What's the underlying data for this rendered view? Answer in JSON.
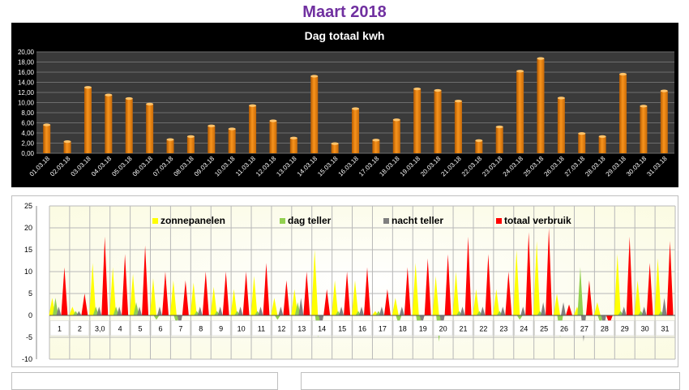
{
  "page": {
    "title": "Maart 2018"
  },
  "chart_data": [
    {
      "type": "bar",
      "title": "Dag totaal kwh",
      "categories": [
        "01.03.18",
        "02.03.18",
        "03.03.18",
        "04.03.18",
        "05.03.18",
        "06.03.18",
        "07.03.18",
        "08.03.18",
        "09.03.18",
        "10.03.18",
        "11.03.18",
        "12.03.18",
        "13.03.18",
        "14.03.18",
        "15.03.18",
        "16.03.18",
        "17.03.18",
        "18.03.18",
        "19.03.18",
        "20.03.18",
        "21.03.18",
        "22.03.18",
        "23.03.18",
        "24.03.18",
        "25.03.18",
        "26.03.18",
        "27.03.18",
        "28.03.18",
        "29.03.18",
        "30.03.18",
        "31.03.18"
      ],
      "values": [
        5.6,
        2.3,
        13.0,
        11.5,
        10.8,
        9.7,
        2.7,
        3.3,
        5.4,
        4.8,
        9.4,
        6.4,
        3.0,
        15.2,
        1.9,
        8.8,
        2.6,
        6.6,
        12.7,
        12.4,
        10.3,
        2.5,
        5.2,
        16.2,
        18.7,
        10.9,
        3.9,
        3.3,
        15.6,
        9.3,
        12.3
      ],
      "ylim": [
        0,
        20
      ],
      "yticks": [
        "0,00",
        "2,00",
        "4,00",
        "6,00",
        "8,00",
        "10,00",
        "12,00",
        "14,00",
        "16,00",
        "18,00",
        "20,00"
      ],
      "grid": true,
      "bar_color": "#f7941d",
      "background": "#000000"
    },
    {
      "type": "area",
      "categories": [
        "1",
        "2",
        "3,0",
        "4",
        "5",
        "6",
        "7",
        "8",
        "9",
        "10",
        "11",
        "12",
        "13",
        "14",
        "15",
        "16",
        "17",
        "18",
        "19",
        "20",
        "21",
        "22",
        "23",
        "24",
        "25",
        "26",
        "27",
        "28",
        "29",
        "30",
        "31"
      ],
      "ylim": [
        -10,
        25
      ],
      "yticks": [
        "-10",
        "-5",
        "0",
        "5",
        "10",
        "15",
        "20",
        "25"
      ],
      "grid": true,
      "legend_position": "top",
      "series": [
        {
          "name": "zonnepanelen",
          "color": "#ffff00",
          "values": [
            4,
            2,
            12,
            11,
            9.5,
            8.5,
            8,
            7.5,
            6.5,
            6,
            9,
            4,
            6,
            15,
            8,
            8,
            1,
            4,
            12,
            9,
            10,
            6,
            6,
            15,
            17,
            5,
            2,
            3,
            14,
            8,
            13
          ]
        },
        {
          "name": "dag teller",
          "color": "#92d050",
          "values": [
            4,
            1,
            2,
            2,
            3,
            -1,
            -2,
            1,
            1,
            1,
            1,
            -1,
            3,
            -5,
            1,
            1,
            1,
            -2,
            -4,
            -6,
            1,
            1,
            1,
            -1,
            1,
            -5,
            11,
            -2,
            1,
            1,
            1
          ]
        },
        {
          "name": "nacht teller",
          "color": "#7f7f7f",
          "values": [
            2,
            1,
            2,
            2,
            2,
            2,
            -3,
            2,
            2,
            2,
            2,
            2,
            4,
            -3,
            2,
            2,
            2,
            2,
            -2,
            -3,
            2,
            2,
            2,
            2,
            3,
            3,
            -6,
            -3,
            2,
            2,
            4
          ]
        },
        {
          "name": "totaal verbruik",
          "color": "#ff0000",
          "values": [
            11,
            5,
            18,
            14,
            16,
            10,
            8,
            10,
            10,
            10,
            12,
            8,
            10,
            6,
            10,
            11,
            6,
            11,
            13,
            14,
            18,
            14,
            10,
            19,
            20,
            2.5,
            8,
            -2,
            18,
            12,
            17
          ]
        }
      ]
    }
  ]
}
